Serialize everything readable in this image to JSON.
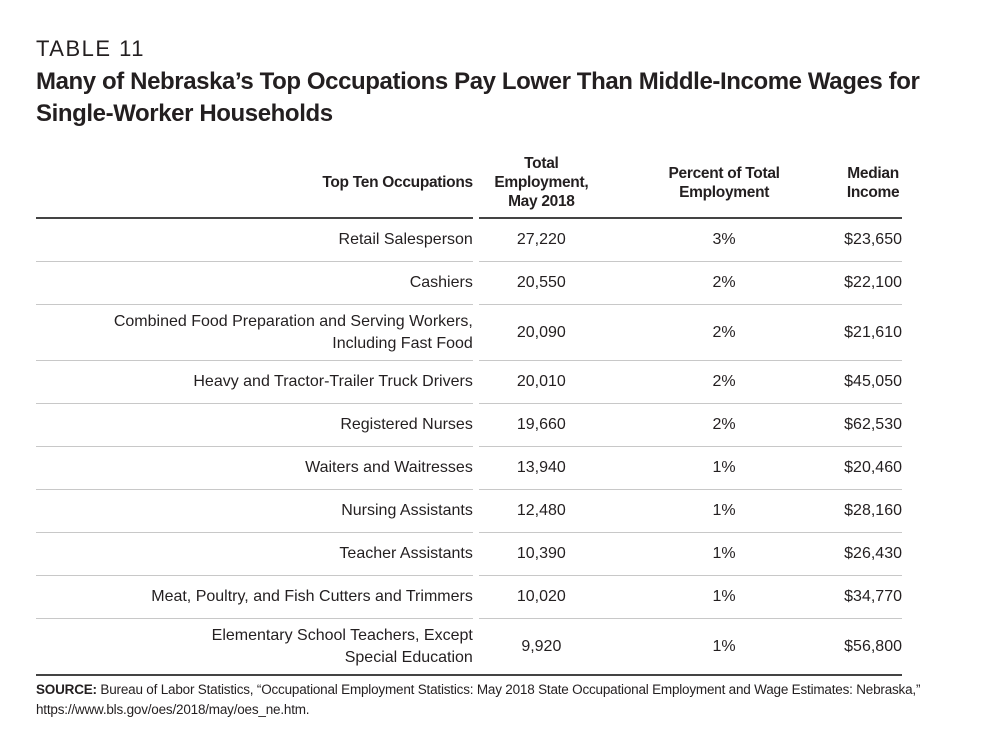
{
  "table_label": "TABLE 11",
  "title": "Many of Nebraska’s Top Occupations Pay Lower Than Middle-Income Wages for Single-Worker Households",
  "headers": [
    "Top Ten Occupations",
    "Total Employment, May 2018",
    "Percent of Total Employment",
    "Median Income"
  ],
  "rows": [
    {
      "occupation": "Retail Salesperson",
      "employment": "27,220",
      "percent": "3%",
      "income": "$23,650"
    },
    {
      "occupation": "Cashiers",
      "employment": "20,550",
      "percent": "2%",
      "income": "$22,100"
    },
    {
      "occupation": "Combined Food Preparation and Serving Workers, Including Fast Food",
      "employment": "20,090",
      "percent": "2%",
      "income": "$21,610"
    },
    {
      "occupation": "Heavy and Tractor-Trailer Truck Drivers",
      "employment": "20,010",
      "percent": "2%",
      "income": "$45,050"
    },
    {
      "occupation": "Registered Nurses",
      "employment": "19,660",
      "percent": "2%",
      "income": "$62,530"
    },
    {
      "occupation": "Waiters and Waitresses",
      "employment": "13,940",
      "percent": "1%",
      "income": "$20,460"
    },
    {
      "occupation": "Nursing Assistants",
      "employment": "12,480",
      "percent": "1%",
      "income": "$28,160"
    },
    {
      "occupation": "Teacher Assistants",
      "employment": "10,390",
      "percent": "1%",
      "income": "$26,430"
    },
    {
      "occupation": "Meat, Poultry, and Fish Cutters and Trimmers",
      "employment": "10,020",
      "percent": "1%",
      "income": "$34,770"
    },
    {
      "occupation": "Elementary School Teachers, Except Special Education",
      "employment": "9,920",
      "percent": "1%",
      "income": "$56,800"
    }
  ],
  "source": {
    "label": "SOURCE:",
    "text": "Bureau of Labor Statistics, “Occupational Employment Statistics: May 2018 State Occupational Employment and Wage Estimates: Nebraska,” https://www.bls.gov/oes/2018/may/oes_ne.htm."
  }
}
